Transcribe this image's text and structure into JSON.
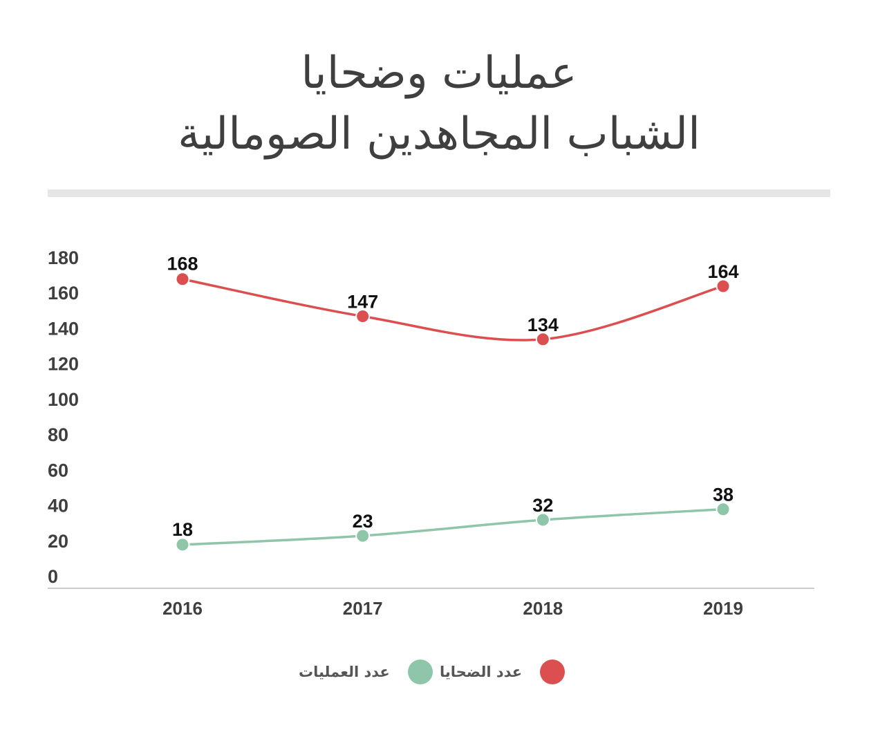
{
  "title_lines": [
    "عمليات وضحايا",
    "الشباب المجاهدين الصومالية"
  ],
  "colors": {
    "casualties": "#dc4f51",
    "operations": "#8fc5a8",
    "axis": "#cccccc",
    "tick": "#3f3f3f",
    "divider": "#e6e6e6"
  },
  "legend": [
    {
      "label": "عدد الضحايا",
      "color": "#dc4f51"
    },
    {
      "label": "عدد العمليات",
      "color": "#8fc5a8"
    }
  ],
  "chart_data": {
    "type": "line",
    "x": [
      "2016",
      "2017",
      "2018",
      "2019"
    ],
    "ylim": [
      0,
      180
    ],
    "yticks": [
      0,
      20,
      40,
      60,
      80,
      100,
      120,
      140,
      160,
      180
    ],
    "grid": false,
    "legend_position": "bottom-center",
    "series": [
      {
        "name": "عدد الضحايا",
        "values": [
          168,
          147,
          134,
          164
        ],
        "labels": [
          "168",
          "147",
          "134",
          "164"
        ],
        "color": "#dc4f51"
      },
      {
        "name": "عدد العمليات",
        "values": [
          18,
          23,
          32,
          38
        ],
        "labels": [
          "18",
          "23",
          "32",
          "38"
        ],
        "color": "#8fc5a8"
      }
    ]
  }
}
